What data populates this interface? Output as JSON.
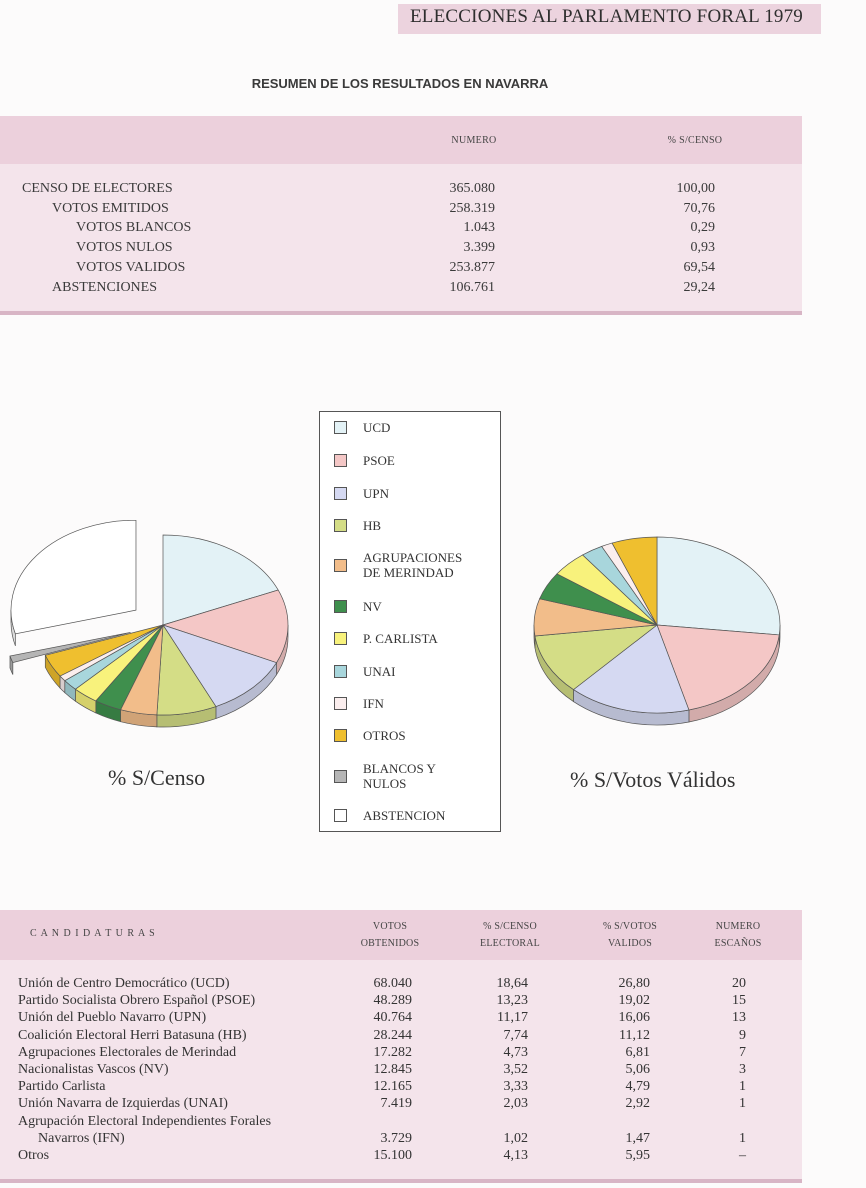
{
  "header": {
    "title": "ELECCIONES AL PARLAMENTO FORAL 1979"
  },
  "summary": {
    "title": "RESUMEN DE LOS RESULTADOS EN NAVARRA",
    "col_numero": "NUMERO",
    "col_pct": "% S/CENSO",
    "rows": [
      {
        "label": "CENSO DE ELECTORES",
        "numero": "365.080",
        "pct": "100,00"
      },
      {
        "label": "VOTOS EMITIDOS",
        "numero": "258.319",
        "pct": "70,76"
      },
      {
        "label": "VOTOS BLANCOS",
        "numero": "1.043",
        "pct": "0,29"
      },
      {
        "label": "VOTOS NULOS",
        "numero": "3.399",
        "pct": "0,93"
      },
      {
        "label": "VOTOS VALIDOS",
        "numero": "253.877",
        "pct": "69,54"
      },
      {
        "label": "ABSTENCIONES",
        "numero": "106.761",
        "pct": "29,24"
      }
    ]
  },
  "legend": [
    {
      "label": "UCD",
      "color": "#e3f2f6"
    },
    {
      "label": "PSOE",
      "color": "#f4c7c6"
    },
    {
      "label": "UPN",
      "color": "#d5d9f2"
    },
    {
      "label": "HB",
      "color": "#d4dd86"
    },
    {
      "label": "AGRUPACIONES\nDE MERINDAD",
      "color": "#f2bd8a"
    },
    {
      "label": "NV",
      "color": "#3f8f4d"
    },
    {
      "label": "P. CARLISTA",
      "color": "#f8f27c"
    },
    {
      "label": "UNAI",
      "color": "#a8d6dc"
    },
    {
      "label": "IFN",
      "color": "#fbeeee"
    },
    {
      "label": "OTROS",
      "color": "#efbf2f"
    },
    {
      "label": "BLANCOS Y\nNULOS",
      "color": "#b5b5b5"
    },
    {
      "label": "ABSTENCION",
      "color": "#ffffff"
    }
  ],
  "pie_captions": {
    "censo": "% S/Censo",
    "validos": "% S/Votos Válidos"
  },
  "chart_data": [
    {
      "type": "pie",
      "title": "% S/Censo",
      "labels": [
        "UCD",
        "PSOE",
        "UPN",
        "HB",
        "AGRUPACIONES DE MERINDAD",
        "NV",
        "P. CARLISTA",
        "UNAI",
        "IFN",
        "OTROS",
        "BLANCOS Y NULOS",
        "ABSTENCION"
      ],
      "values": [
        18.64,
        13.23,
        11.17,
        7.74,
        4.73,
        3.52,
        3.33,
        2.03,
        1.02,
        4.13,
        1.22,
        29.24
      ]
    },
    {
      "type": "pie",
      "title": "% S/Votos Válidos",
      "labels": [
        "UCD",
        "PSOE",
        "UPN",
        "HB",
        "AGRUPACIONES DE MERINDAD",
        "NV",
        "P. CARLISTA",
        "UNAI",
        "IFN",
        "OTROS"
      ],
      "values": [
        26.8,
        19.02,
        16.06,
        11.12,
        6.81,
        5.06,
        4.79,
        2.92,
        1.47,
        5.95
      ]
    }
  ],
  "candidates": {
    "header": {
      "candidaturas": "C A N D I D A T U R A S",
      "votos": "VOTOS\nOBTENIDOS",
      "pct_censo": "% S/CENSO\nELECTORAL",
      "pct_validos": "% S/VOTOS\nVALIDOS",
      "escanos": "NUMERO\nESCAÑOS"
    },
    "rows": [
      {
        "name": "Unión de Centro Democrático (UCD)",
        "votos": "68.040",
        "censo": "18,64",
        "validos": "26,80",
        "escanos": "20"
      },
      {
        "name": "Partido Socialista Obrero Español (PSOE)",
        "votos": "48.289",
        "censo": "13,23",
        "validos": "19,02",
        "escanos": "15"
      },
      {
        "name": "Unión del Pueblo Navarro (UPN)",
        "votos": "40.764",
        "censo": "11,17",
        "validos": "16,06",
        "escanos": "13"
      },
      {
        "name": "Coalición Electoral Herri Batasuna (HB)",
        "votos": "28.244",
        "censo": "7,74",
        "validos": "11,12",
        "escanos": "9"
      },
      {
        "name": "Agrupaciones Electorales de Merindad",
        "votos": "17.282",
        "censo": "4,73",
        "validos": "6,81",
        "escanos": "7"
      },
      {
        "name": "Nacionalistas Vascos (NV)",
        "votos": "12.845",
        "censo": "3,52",
        "validos": "5,06",
        "escanos": "3"
      },
      {
        "name": "Partido Carlista",
        "votos": "12.165",
        "censo": "3,33",
        "validos": "4,79",
        "escanos": "1"
      },
      {
        "name": "Unión Navarra de Izquierdas (UNAI)",
        "votos": "7.419",
        "censo": "2,03",
        "validos": "2,92",
        "escanos": "1"
      },
      {
        "name": "Agrupación Electoral Independientes Forales",
        "votos": "",
        "censo": "",
        "validos": "",
        "escanos": ""
      },
      {
        "name": "Navarros (IFN)",
        "votos": "3.729",
        "censo": "1,02",
        "validos": "1,47",
        "escanos": "1"
      },
      {
        "name": "Otros",
        "votos": "15.100",
        "censo": "4,13",
        "validos": "5,95",
        "escanos": "–"
      }
    ]
  }
}
